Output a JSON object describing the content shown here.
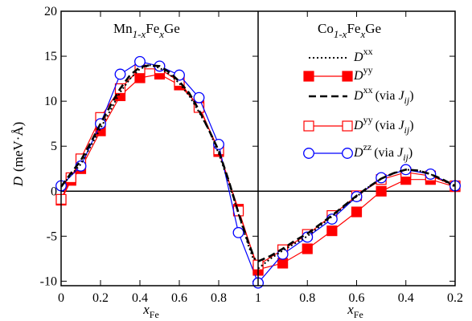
{
  "chart_data": {
    "type": "line",
    "ylabel_parts": [
      "D",
      "(meV·Å)"
    ],
    "xlabel": {
      "base": "x",
      "sub": "Fe"
    },
    "ylim": [
      -10.5,
      20
    ],
    "yticks": [
      -10,
      -5,
      0,
      5,
      10,
      15,
      20
    ],
    "grid": false,
    "legend_position": "right panel, upper right",
    "colors": {
      "red": "#ff0000",
      "blue": "#0000ff",
      "black": "#000000"
    },
    "panels": [
      {
        "name": "Mn1-xFexGe",
        "title": {
          "a": "Mn",
          "b": "1-x",
          "c": "Fe",
          "d": "x",
          "e": "Ge"
        },
        "xlim": [
          0,
          1
        ],
        "xticks": [
          0,
          0.2,
          0.4,
          0.6,
          0.8,
          1
        ],
        "xtick_labels": [
          "0",
          "0.2",
          "0.4",
          "0.6",
          "0.8",
          "1"
        ],
        "x": [
          0,
          0.05,
          0.1,
          0.15,
          0.2,
          0.25,
          0.3,
          0.35,
          0.4,
          0.45,
          0.5,
          0.55,
          0.6,
          0.65,
          0.7,
          0.75,
          0.8,
          0.85,
          0.9,
          0.95,
          1.0
        ],
        "series": [
          {
            "key": "dxx",
            "x": [
              0,
              0.05,
              0.1,
              0.15,
              0.2,
              0.25,
              0.3,
              0.35,
              0.4,
              0.45,
              0.5,
              0.55,
              0.6,
              0.65,
              0.7,
              0.75,
              0.8,
              0.85,
              0.9,
              0.95,
              1.0
            ],
            "values": [
              0.5,
              1.8,
              3.0,
              5.0,
              7.0,
              9.0,
              11.0,
              12.5,
              13.6,
              14.0,
              13.7,
              13.0,
              12.0,
              10.6,
              8.8,
              6.8,
              4.2,
              1.0,
              -2.5,
              -6.0,
              -9.0
            ]
          },
          {
            "key": "dyy",
            "x": [
              0,
              0.05,
              0.1,
              0.2,
              0.3,
              0.4,
              0.5,
              0.6,
              0.7,
              0.8,
              0.9,
              1.0
            ],
            "values": [
              -1.0,
              1.2,
              2.5,
              6.7,
              10.6,
              12.6,
              13.0,
              11.8,
              9.5,
              4.4,
              -2.0,
              -8.8
            ]
          },
          {
            "key": "dxx_j",
            "x": [
              0,
              0.05,
              0.1,
              0.15,
              0.2,
              0.25,
              0.3,
              0.35,
              0.4,
              0.45,
              0.5,
              0.55,
              0.6,
              0.65,
              0.7,
              0.75,
              0.8,
              0.85,
              0.9,
              0.95,
              1.0
            ],
            "values": [
              0.5,
              2.0,
              3.4,
              5.4,
              7.5,
              9.5,
              11.4,
              12.9,
              13.8,
              14.0,
              13.9,
              13.2,
              12.2,
              10.9,
              9.0,
              6.8,
              4.5,
              1.2,
              -2.4,
              -5.7,
              -8.5
            ]
          },
          {
            "key": "dyy_j",
            "x": [
              0,
              0.05,
              0.1,
              0.2,
              0.3,
              0.4,
              0.5,
              0.6,
              0.7,
              0.8,
              0.9,
              1.0
            ],
            "values": [
              -0.9,
              1.5,
              3.6,
              8.2,
              11.4,
              13.6,
              13.6,
              12.2,
              9.3,
              4.6,
              -2.2,
              -8.6
            ]
          },
          {
            "key": "dzz_j",
            "x": [
              0,
              0.1,
              0.2,
              0.3,
              0.4,
              0.5,
              0.6,
              0.7,
              0.8,
              0.9,
              1.0
            ],
            "values": [
              0.6,
              2.8,
              7.5,
              13.0,
              14.4,
              13.9,
              12.9,
              10.4,
              5.2,
              -4.6,
              -10.2
            ]
          }
        ]
      },
      {
        "name": "Co1-xFexGe",
        "title": {
          "a": "Co",
          "b": "1-x",
          "c": "Fe",
          "d": "x",
          "e": "Ge"
        },
        "xlim": [
          1,
          0.2
        ],
        "xticks": [
          1,
          0.8,
          0.6,
          0.4,
          0.2
        ],
        "xtick_labels": [
          "1",
          "0.8",
          "0.6",
          "0.4",
          "0.2"
        ],
        "series": [
          {
            "key": "dxx",
            "x": [
              1.0,
              0.95,
              0.9,
              0.85,
              0.8,
              0.75,
              0.7,
              0.65,
              0.6,
              0.55,
              0.5,
              0.45,
              0.4,
              0.35,
              0.3,
              0.25,
              0.2
            ],
            "values": [
              -8.6,
              -7.5,
              -6.6,
              -5.8,
              -5.0,
              -3.9,
              -2.8,
              -1.7,
              -0.6,
              0.5,
              1.4,
              2.0,
              2.4,
              2.3,
              1.9,
              1.2,
              0.5
            ]
          },
          {
            "key": "dyy",
            "x": [
              1.0,
              0.9,
              0.8,
              0.7,
              0.6,
              0.5,
              0.4,
              0.3,
              0.2
            ],
            "values": [
              -8.7,
              -8.0,
              -6.4,
              -4.4,
              -2.3,
              0.0,
              1.3,
              1.3,
              0.5
            ]
          },
          {
            "key": "dxx_j",
            "x": [
              1.0,
              0.95,
              0.9,
              0.85,
              0.8,
              0.75,
              0.7,
              0.65,
              0.6,
              0.55,
              0.5,
              0.45,
              0.4,
              0.35,
              0.3,
              0.25,
              0.2
            ],
            "values": [
              -7.8,
              -7.2,
              -6.4,
              -5.5,
              -4.7,
              -3.7,
              -2.7,
              -1.6,
              -0.5,
              0.5,
              1.4,
              2.0,
              2.4,
              2.3,
              1.9,
              1.3,
              0.6
            ]
          },
          {
            "key": "dyy_j",
            "x": [
              1.0,
              0.9,
              0.8,
              0.7,
              0.6,
              0.5,
              0.4,
              0.3,
              0.2
            ],
            "values": [
              -8.2,
              -6.5,
              -4.8,
              -2.7,
              -0.5,
              1.3,
              2.1,
              1.7,
              0.6
            ]
          },
          {
            "key": "dzz_j",
            "x": [
              1.0,
              0.9,
              0.8,
              0.7,
              0.6,
              0.5,
              0.4,
              0.3,
              0.2
            ],
            "values": [
              -10.2,
              -7.0,
              -5.1,
              -3.1,
              -0.6,
              1.5,
              2.4,
              1.9,
              0.6
            ]
          }
        ]
      }
    ],
    "legend": [
      {
        "key": "dxx",
        "sup": "xx",
        "via": ""
      },
      {
        "key": "dyy",
        "sup": "yy",
        "via": ""
      },
      {
        "key": "dxx_j",
        "sup": "xx",
        "via": "(via "
      },
      {
        "key": "dyy_j",
        "sup": "yy",
        "via": "(via "
      },
      {
        "key": "dzz_j",
        "sup": "zz",
        "via": "(via "
      }
    ],
    "legend_text": {
      "d": "D",
      "j": "J",
      "ij": "ij",
      "close": ")"
    }
  }
}
